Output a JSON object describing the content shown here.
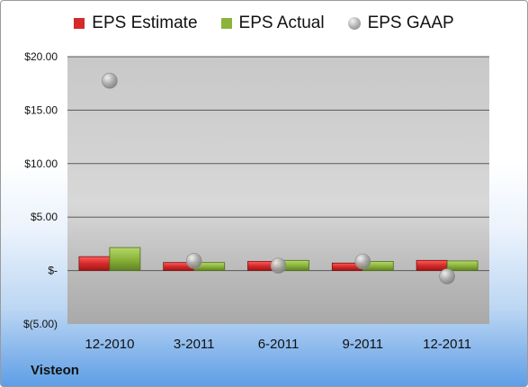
{
  "legend": [
    {
      "label": "EPS Estimate",
      "color": "#d42a2a"
    },
    {
      "label": "EPS Actual",
      "color": "#8cb43c"
    },
    {
      "label": "EPS GAAP",
      "color": "#a7a7a7"
    }
  ],
  "company": "Visteon",
  "chart_data": {
    "type": "bar",
    "categories": [
      "12-2010",
      "3-2011",
      "6-2011",
      "9-2011",
      "12-2011"
    ],
    "series": [
      {
        "name": "EPS Estimate",
        "type": "bar",
        "values": [
          1.3,
          0.75,
          0.85,
          0.7,
          0.95
        ]
      },
      {
        "name": "EPS Actual",
        "type": "bar",
        "values": [
          2.15,
          0.75,
          0.95,
          0.85,
          0.9
        ]
      },
      {
        "name": "EPS GAAP",
        "type": "scatter",
        "values": [
          17.75,
          0.9,
          0.45,
          0.85,
          -0.55
        ]
      }
    ],
    "yticks": [
      20,
      15,
      10,
      5,
      0,
      -5
    ],
    "ytick_labels": [
      "$20.00",
      "$15.00",
      "$10.00",
      "$5.00",
      "$-",
      "$(5.00)"
    ],
    "ylim": [
      -5,
      20
    ],
    "grid": true,
    "legend_position": "top"
  }
}
